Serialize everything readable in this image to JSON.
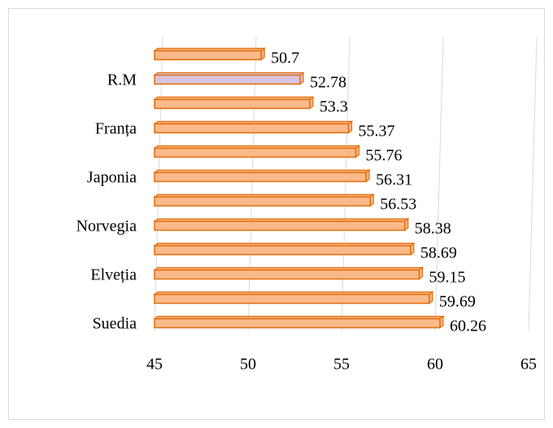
{
  "chart_data": {
    "type": "hbar",
    "categories": [
      null,
      "R.M",
      null,
      "Franța",
      null,
      "Japonia",
      null,
      "Norvegia",
      null,
      "Elveția",
      null,
      "Suedia"
    ],
    "values": [
      50.7,
      52.78,
      53.3,
      55.37,
      55.76,
      56.31,
      56.53,
      58.38,
      58.69,
      59.15,
      59.69,
      60.26
    ],
    "colors": [
      "#f9b98a",
      "#d8c4dc",
      "#f9b98a",
      "#f9b98a",
      "#f9b98a",
      "#f9b98a",
      "#f9b98a",
      "#f9b98a",
      "#f9b98a",
      "#f9b98a",
      "#f9b98a",
      "#f9b98a"
    ],
    "edge_color": "#e46c0a",
    "xlim": [
      45,
      65
    ],
    "xticks": [
      45,
      50,
      55,
      60,
      65
    ],
    "grid": true
  }
}
